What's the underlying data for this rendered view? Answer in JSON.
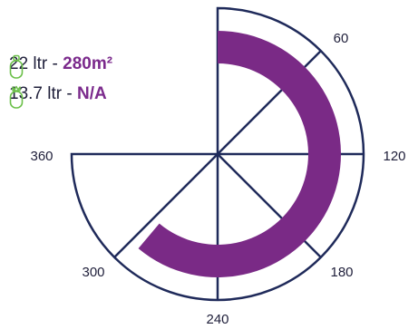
{
  "colors": {
    "accent": "#7b2a8c",
    "accent_light": "#7a2a86",
    "outline": "#1f2a5a",
    "icon_green": "#6cc04a",
    "text": "#1f1f3a"
  },
  "legend": [
    {
      "label": "22 ltr - ",
      "value": "280m²",
      "icon": "gas-cylinder-icon"
    },
    {
      "label": "13.7 ltr - ",
      "value": "N/A",
      "icon": "gas-cylinder-crown-icon"
    }
  ],
  "dial": {
    "ticks": [
      "60",
      "120",
      "180",
      "240",
      "300",
      "360"
    ],
    "coverage_arc": {
      "start": 0,
      "end": 220
    }
  }
}
